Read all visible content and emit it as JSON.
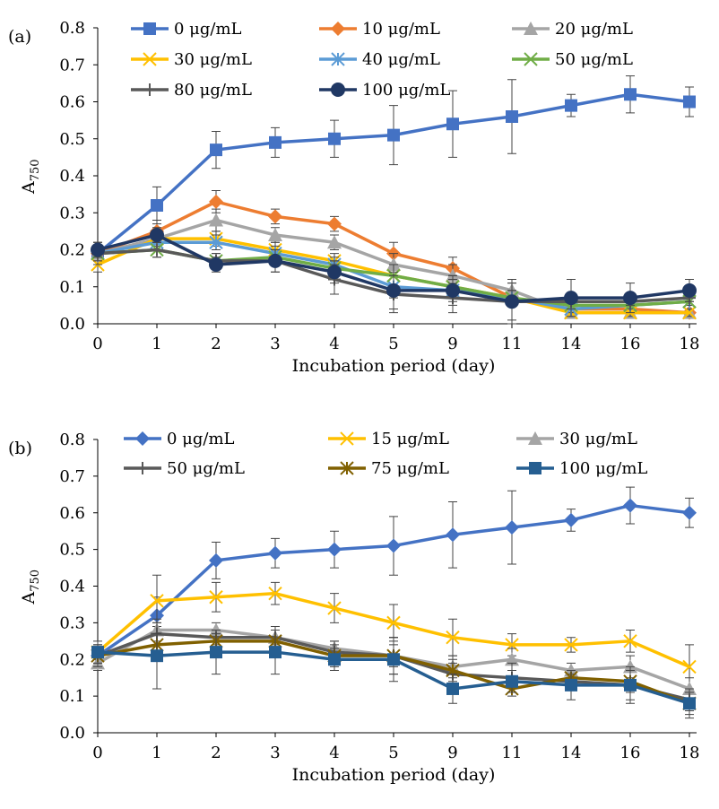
{
  "chart_data": [
    {
      "type": "line",
      "panel_label": "(a)",
      "categories": [
        "0",
        "1",
        "2",
        "3",
        "4",
        "5",
        "9",
        "11",
        "14",
        "16",
        "18"
      ],
      "xlabel": "Incubation period (day)",
      "ylabel_main": "A",
      "ylabel_sub": "750",
      "ylim": [
        0,
        0.8
      ],
      "yticks": [
        "0.0",
        "0.1",
        "0.2",
        "0.3",
        "0.4",
        "0.5",
        "0.6",
        "0.7",
        "0.8"
      ],
      "legend_position": "top",
      "series": [
        {
          "name": "0 μg/mL",
          "color": "#4472C4",
          "marker": "square",
          "values": [
            0.19,
            0.32,
            0.47,
            0.49,
            0.5,
            0.51,
            0.54,
            0.56,
            0.59,
            0.62,
            0.6
          ],
          "errors": [
            0.03,
            0.05,
            0.05,
            0.04,
            0.05,
            0.08,
            0.09,
            0.1,
            0.03,
            0.05,
            0.04
          ]
        },
        {
          "name": "10 μg/mL",
          "color": "#ED7D31",
          "marker": "diamond",
          "values": [
            0.19,
            0.25,
            0.33,
            0.29,
            0.27,
            0.19,
            0.15,
            0.07,
            0.04,
            0.04,
            0.03
          ],
          "errors": [
            0.02,
            0.03,
            0.03,
            0.02,
            0.02,
            0.03,
            0.03,
            0.02,
            0.01,
            0.01,
            0.01
          ]
        },
        {
          "name": "20 μg/mL",
          "color": "#A5A5A5",
          "marker": "triangle",
          "values": [
            0.19,
            0.23,
            0.28,
            0.24,
            0.22,
            0.16,
            0.13,
            0.09,
            0.03,
            0.03,
            0.03
          ],
          "errors": [
            0.02,
            0.02,
            0.03,
            0.02,
            0.02,
            0.03,
            0.03,
            0.02,
            0.01,
            0.01,
            0.01
          ]
        },
        {
          "name": "30 μg/mL",
          "color": "#FFC000",
          "marker": "x",
          "values": [
            0.16,
            0.23,
            0.23,
            0.2,
            0.17,
            0.13,
            0.1,
            0.07,
            0.03,
            0.03,
            0.03
          ],
          "errors": [
            0.02,
            0.02,
            0.02,
            0.02,
            0.02,
            0.03,
            0.03,
            0.02,
            0.01,
            0.01,
            0.01
          ]
        },
        {
          "name": "40 μg/mL",
          "color": "#5B9BD5",
          "marker": "star",
          "values": [
            0.19,
            0.22,
            0.22,
            0.19,
            0.16,
            0.1,
            0.09,
            0.07,
            0.04,
            0.05,
            0.06
          ],
          "errors": [
            0.02,
            0.02,
            0.02,
            0.02,
            0.02,
            0.03,
            0.03,
            0.02,
            0.01,
            0.01,
            0.01
          ]
        },
        {
          "name": "50 μg/mL",
          "color": "#70AD47",
          "marker": "x",
          "values": [
            0.19,
            0.2,
            0.17,
            0.18,
            0.15,
            0.13,
            0.1,
            0.07,
            0.05,
            0.05,
            0.06
          ],
          "errors": [
            0.02,
            0.02,
            0.02,
            0.02,
            0.02,
            0.03,
            0.03,
            0.02,
            0.01,
            0.01,
            0.01
          ]
        },
        {
          "name": "80 μg/mL",
          "color": "#595959",
          "marker": "plus",
          "values": [
            0.19,
            0.2,
            0.17,
            0.17,
            0.12,
            0.08,
            0.07,
            0.06,
            0.06,
            0.06,
            0.07
          ],
          "errors": [
            0.03,
            0.02,
            0.02,
            0.03,
            0.04,
            0.05,
            0.04,
            0.06,
            0.02,
            0.01,
            0.01
          ]
        },
        {
          "name": "100 μg/mL",
          "color": "#203864",
          "marker": "circle",
          "values": [
            0.2,
            0.24,
            0.16,
            0.17,
            0.14,
            0.09,
            0.09,
            0.06,
            0.07,
            0.07,
            0.09
          ],
          "errors": [
            0.02,
            0.02,
            0.02,
            0.03,
            0.03,
            0.05,
            0.04,
            0.05,
            0.05,
            0.04,
            0.03
          ]
        }
      ]
    },
    {
      "type": "line",
      "panel_label": "(b)",
      "categories": [
        "0",
        "1",
        "2",
        "3",
        "4",
        "5",
        "9",
        "11",
        "14",
        "16",
        "18"
      ],
      "xlabel": "Incubation period (day)",
      "ylabel_main": "A",
      "ylabel_sub": "750",
      "ylim": [
        0,
        0.8
      ],
      "yticks": [
        "0.0",
        "0.1",
        "0.2",
        "0.3",
        "0.4",
        "0.5",
        "0.6",
        "0.7",
        "0.8"
      ],
      "legend_position": "top",
      "series": [
        {
          "name": "0 μg/mL",
          "color": "#4472C4",
          "marker": "diamond",
          "values": [
            0.21,
            0.32,
            0.47,
            0.49,
            0.5,
            0.51,
            0.54,
            0.56,
            0.58,
            0.62,
            0.6
          ],
          "errors": [
            0.03,
            0.05,
            0.05,
            0.04,
            0.05,
            0.08,
            0.09,
            0.1,
            0.03,
            0.05,
            0.04
          ]
        },
        {
          "name": "15 μg/mL",
          "color": "#FFC000",
          "marker": "x",
          "values": [
            0.22,
            0.36,
            0.37,
            0.38,
            0.34,
            0.3,
            0.26,
            0.24,
            0.24,
            0.25,
            0.18
          ],
          "errors": [
            0.02,
            0.07,
            0.04,
            0.03,
            0.04,
            0.05,
            0.05,
            0.03,
            0.02,
            0.03,
            0.06
          ]
        },
        {
          "name": "30 μg/mL",
          "color": "#A5A5A5",
          "marker": "triangle",
          "values": [
            0.19,
            0.28,
            0.28,
            0.26,
            0.23,
            0.21,
            0.18,
            0.2,
            0.17,
            0.18,
            0.12
          ],
          "errors": [
            0.02,
            0.03,
            0.02,
            0.02,
            0.02,
            0.03,
            0.03,
            0.03,
            0.02,
            0.03,
            0.03
          ]
        },
        {
          "name": "50 μg/mL",
          "color": "#595959",
          "marker": "plus",
          "values": [
            0.21,
            0.27,
            0.26,
            0.26,
            0.22,
            0.21,
            0.16,
            0.15,
            0.14,
            0.13,
            0.09
          ],
          "errors": [
            0.03,
            0.03,
            0.02,
            0.03,
            0.03,
            0.05,
            0.03,
            0.04,
            0.02,
            0.04,
            0.03
          ]
        },
        {
          "name": "75 μg/mL",
          "color": "#806000",
          "marker": "star",
          "values": [
            0.21,
            0.24,
            0.25,
            0.25,
            0.21,
            0.21,
            0.17,
            0.12,
            0.15,
            0.14,
            0.08
          ],
          "errors": [
            0.02,
            0.03,
            0.02,
            0.03,
            0.03,
            0.05,
            0.03,
            0.02,
            0.02,
            0.03,
            0.03
          ]
        },
        {
          "name": "100 μg/mL",
          "color": "#255E91",
          "marker": "square",
          "values": [
            0.22,
            0.21,
            0.22,
            0.22,
            0.2,
            0.2,
            0.12,
            0.14,
            0.13,
            0.13,
            0.08
          ],
          "errors": [
            0.03,
            0.09,
            0.06,
            0.06,
            0.03,
            0.06,
            0.04,
            0.03,
            0.04,
            0.05,
            0.04
          ]
        }
      ]
    }
  ]
}
